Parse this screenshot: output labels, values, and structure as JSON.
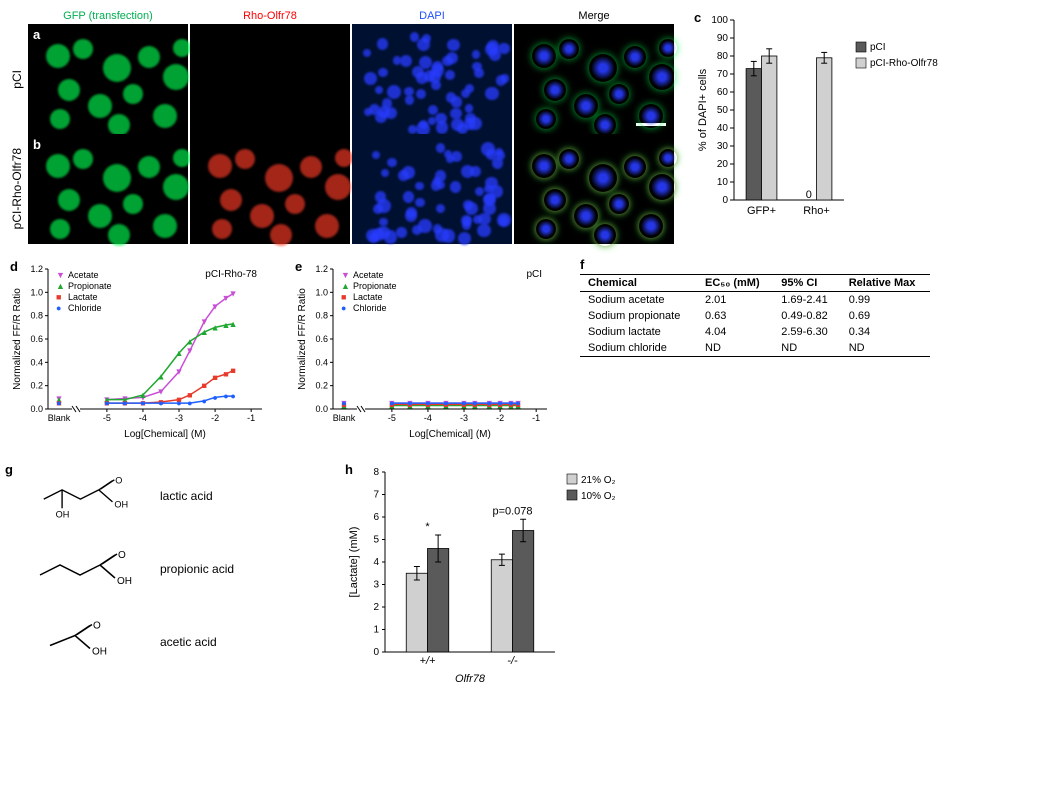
{
  "microscopy": {
    "headers": [
      {
        "label": "GFP (transfection)",
        "color": "#00b050"
      },
      {
        "label": "Rho-Olfr78",
        "color": "#ff0000"
      },
      {
        "label": "DAPI",
        "color": "#1f4fff"
      },
      {
        "label": "Merge",
        "color": "#000000"
      }
    ],
    "rows": [
      {
        "panel_letter": "a",
        "vlabel": "pCI",
        "show_red": false
      },
      {
        "panel_letter": "b",
        "vlabel": "pCI-Rho-Olfr78",
        "show_red": true
      }
    ]
  },
  "panel_c": {
    "letter": "c",
    "ylabel": "% of DAPI+ cells",
    "ymax": 100,
    "ytick_step": 10,
    "categories": [
      "GFP+",
      "Rho+"
    ],
    "series": [
      {
        "name": "pCI",
        "color": "#5a5a5a",
        "values": [
          73,
          0
        ],
        "err": [
          4,
          0
        ]
      },
      {
        "name": "pCI-Rho-Olfr78",
        "color": "#d0d0d0",
        "values": [
          80,
          79
        ],
        "err": [
          4,
          3
        ]
      }
    ],
    "zero_label": "0"
  },
  "panel_d": {
    "letter": "d",
    "title": "pCI-Rho-78",
    "xlabel": "Log[Chemical] (M)",
    "ylabel": "Normalized FF/R Ratio",
    "ylim": [
      0,
      1.2
    ],
    "ytick_step": 0.2,
    "x_break_label": "Blank",
    "x_ticks": [
      -5,
      -4,
      -3,
      -2,
      -1
    ],
    "series": [
      {
        "name": "Acetate",
        "color": "#c84fd6",
        "marker": "▼",
        "x": [
          -5.6,
          -5,
          -4.5,
          -4,
          -3.5,
          -3,
          -2.7,
          -2.3,
          -2,
          -1.7,
          -1.5
        ],
        "y": [
          0.09,
          0.08,
          0.09,
          0.1,
          0.15,
          0.32,
          0.5,
          0.75,
          0.88,
          0.95,
          0.99
        ]
      },
      {
        "name": "Propionate",
        "color": "#1ea830",
        "marker": "▲",
        "x": [
          -5.6,
          -5,
          -4.5,
          -4,
          -3.5,
          -3,
          -2.7,
          -2.3,
          -2,
          -1.7,
          -1.5
        ],
        "y": [
          0.08,
          0.08,
          0.08,
          0.12,
          0.28,
          0.48,
          0.58,
          0.66,
          0.7,
          0.72,
          0.73
        ]
      },
      {
        "name": "Lactate",
        "color": "#e83a2a",
        "marker": "■",
        "x": [
          -5.6,
          -5,
          -4.5,
          -4,
          -3.5,
          -3,
          -2.7,
          -2.3,
          -2,
          -1.7,
          -1.5
        ],
        "y": [
          0.05,
          0.05,
          0.05,
          0.05,
          0.06,
          0.08,
          0.12,
          0.2,
          0.27,
          0.3,
          0.33
        ]
      },
      {
        "name": "Chloride",
        "color": "#1f5fff",
        "marker": "●",
        "x": [
          -5.6,
          -5,
          -4.5,
          -4,
          -3.5,
          -3,
          -2.7,
          -2.3,
          -2,
          -1.7,
          -1.5
        ],
        "y": [
          0.05,
          0.05,
          0.05,
          0.05,
          0.05,
          0.05,
          0.05,
          0.07,
          0.1,
          0.11,
          0.11
        ]
      }
    ]
  },
  "panel_e": {
    "letter": "e",
    "title": "pCI",
    "xlabel": "Log[Chemical] (M)",
    "ylabel": "Normalized FF/R Ratio",
    "ylim": [
      0,
      1.2
    ],
    "ytick_step": 0.2,
    "x_break_label": "Blank",
    "x_ticks": [
      -5,
      -4,
      -3,
      -2,
      -1
    ],
    "series": [
      {
        "name": "Acetate",
        "color": "#c84fd6",
        "marker": "▼",
        "x": [
          -5.6,
          -5,
          -4.5,
          -4,
          -3.5,
          -3,
          -2.7,
          -2.3,
          -2,
          -1.7,
          -1.5
        ],
        "y": [
          0.05,
          0.05,
          0.05,
          0.05,
          0.05,
          0.05,
          0.05,
          0.05,
          0.05,
          0.05,
          0.05
        ]
      },
      {
        "name": "Propionate",
        "color": "#1ea830",
        "marker": "▲",
        "x": [
          -5.6,
          -5,
          -4.5,
          -4,
          -3.5,
          -3,
          -2.7,
          -2.3,
          -2,
          -1.7,
          -1.5
        ],
        "y": [
          0.03,
          0.03,
          0.03,
          0.03,
          0.03,
          0.03,
          0.03,
          0.03,
          0.03,
          0.03,
          0.03
        ]
      },
      {
        "name": "Lactate",
        "color": "#e83a2a",
        "marker": "■",
        "x": [
          -5.6,
          -5,
          -4.5,
          -4,
          -3.5,
          -3,
          -2.7,
          -2.3,
          -2,
          -1.7,
          -1.5
        ],
        "y": [
          0.04,
          0.04,
          0.04,
          0.04,
          0.04,
          0.04,
          0.04,
          0.04,
          0.04,
          0.04,
          0.04
        ]
      },
      {
        "name": "Chloride",
        "color": "#1f5fff",
        "marker": "●",
        "x": [
          -5.6,
          -5,
          -4.5,
          -4,
          -3.5,
          -3,
          -2.7,
          -2.3,
          -2,
          -1.7,
          -1.5
        ],
        "y": [
          0.05,
          0.05,
          0.05,
          0.05,
          0.05,
          0.05,
          0.05,
          0.05,
          0.05,
          0.05,
          0.05
        ]
      }
    ]
  },
  "panel_f": {
    "letter": "f",
    "columns": [
      "Chemical",
      "EC₅₀ (mM)",
      "95% CI",
      "Relative Max"
    ],
    "rows": [
      [
        "Sodium acetate",
        "2.01",
        "1.69-2.41",
        "0.99"
      ],
      [
        "Sodium propionate",
        "0.63",
        "0.49-0.82",
        "0.69"
      ],
      [
        "Sodium lactate",
        "4.04",
        "2.59-6.30",
        "0.34"
      ],
      [
        "Sodium chloride",
        "ND",
        "ND",
        "ND"
      ]
    ]
  },
  "panel_g": {
    "letter": "g",
    "items": [
      {
        "label": "lactic acid"
      },
      {
        "label": "propionic acid"
      },
      {
        "label": "acetic acid"
      }
    ]
  },
  "panel_h": {
    "letter": "h",
    "ylabel": "[Lactate] (mM)",
    "ymax": 8,
    "ytick_step": 1,
    "categories": [
      "+/+",
      "-/-"
    ],
    "xlabel": "Olfr78",
    "series": [
      {
        "name": "21% O₂",
        "color": "#d0d0d0",
        "values": [
          3.5,
          4.1
        ],
        "err": [
          0.3,
          0.25
        ]
      },
      {
        "name": "10% O₂",
        "color": "#5a5a5a",
        "values": [
          4.6,
          5.4
        ],
        "err": [
          0.6,
          0.5
        ]
      }
    ],
    "annotations": [
      {
        "text": "*",
        "x_cat": 0,
        "above_series": 1
      },
      {
        "text": "p=0.078",
        "x_cat": 1,
        "above_series": 1
      }
    ]
  }
}
